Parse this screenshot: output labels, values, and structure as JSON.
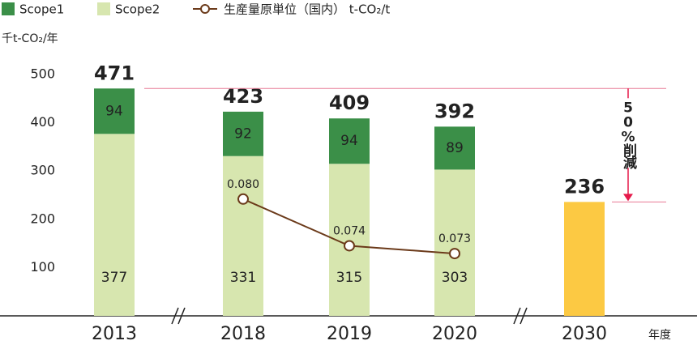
{
  "chart_data": {
    "type": "bar",
    "y_label": "千t-CO₂/年",
    "x_label": "年度",
    "annotation": "50%削減",
    "categories": [
      "2013",
      "2018",
      "2019",
      "2020",
      "2030"
    ],
    "series": [
      {
        "name": "Scope1",
        "color": "#3b8f48",
        "values": [
          94,
          92,
          94,
          89,
          null
        ]
      },
      {
        "name": "Scope2",
        "color": "#d7e6af",
        "values": [
          377,
          331,
          315,
          303,
          null
        ]
      },
      {
        "color": "#fcc943",
        "values": [
          null,
          null,
          null,
          null,
          236
        ]
      },
      {
        "name": "生産量原単位（国内） t-CO₂/t",
        "type": "line",
        "axis": "y2",
        "color": "#6b3a1a",
        "values": [
          null,
          0.08,
          0.074,
          0.073,
          null
        ],
        "value_labels": [
          null,
          "0.080",
          "0.074",
          "0.073",
          null
        ]
      }
    ],
    "totals": [
      471,
      423,
      409,
      392,
      null
    ],
    "ylim": [
      0,
      500
    ],
    "yticks": [
      100,
      200,
      300,
      400,
      500
    ],
    "y2lim": [
      0.065,
      0.096
    ],
    "grid": false,
    "legend": "top"
  }
}
